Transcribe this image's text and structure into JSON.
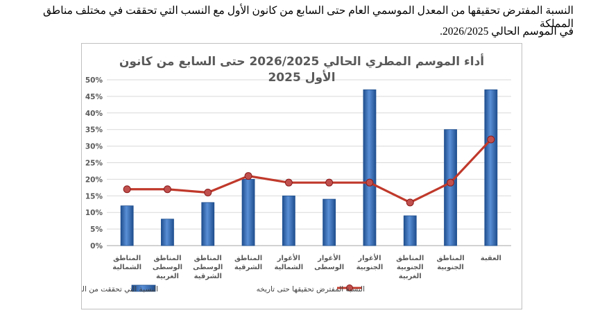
{
  "document": {
    "paragraph_line1": "النسبة المفترض تحقيقها من المعدل الموسمي العام حتى السابع من كانون الأول مع النسب التي تحققت في مختلف مناطق المملكة",
    "paragraph_line2": "في الموسم الحالي 2026/2025."
  },
  "chart_data": {
    "type": "bar",
    "title_line1": "أداء الموسم المطري الحالي 2026/2025 حتى السابع من كانون",
    "title_line2": "الأول 2025",
    "categories": [
      [
        "المناطق",
        "الشمالية"
      ],
      [
        "المناطق",
        "الوسطى",
        "الغربية"
      ],
      [
        "المناطق",
        "الوسطى",
        "الشرقية"
      ],
      [
        "المناطق",
        "الشرقية"
      ],
      [
        "الأغوار",
        "الشمالية"
      ],
      [
        "الأغوار",
        "الوسطى"
      ],
      [
        "الأغوار",
        "الجنوبية"
      ],
      [
        "المناطق",
        "الجنوبية",
        "الغربية"
      ],
      [
        "المناطق",
        "الجنوبية"
      ],
      [
        "العقبة"
      ]
    ],
    "series": [
      {
        "name": "النسبة التي تحققت من الموسم الحالي حتى تاريخه",
        "kind": "bar",
        "values": [
          12,
          8,
          13,
          20,
          15,
          14,
          47,
          9,
          35,
          47
        ]
      },
      {
        "name": "النسبة المفترض تحقيقها حتى تاريخه",
        "kind": "line",
        "values": [
          17,
          17,
          16,
          21,
          19,
          19,
          19,
          13,
          19,
          32
        ]
      }
    ],
    "yticks": [
      "0%",
      "5%",
      "10%",
      "15%",
      "20%",
      "25%",
      "30%",
      "35%",
      "40%",
      "45%",
      "50%"
    ],
    "ylim": [
      0,
      50
    ],
    "grid": true,
    "legend_position": "bottom",
    "colors": {
      "bar": "#3a6fc0",
      "bar_dark": "#1f4f8f",
      "line": "#c0392b",
      "grid": "#d9d9d9"
    }
  }
}
